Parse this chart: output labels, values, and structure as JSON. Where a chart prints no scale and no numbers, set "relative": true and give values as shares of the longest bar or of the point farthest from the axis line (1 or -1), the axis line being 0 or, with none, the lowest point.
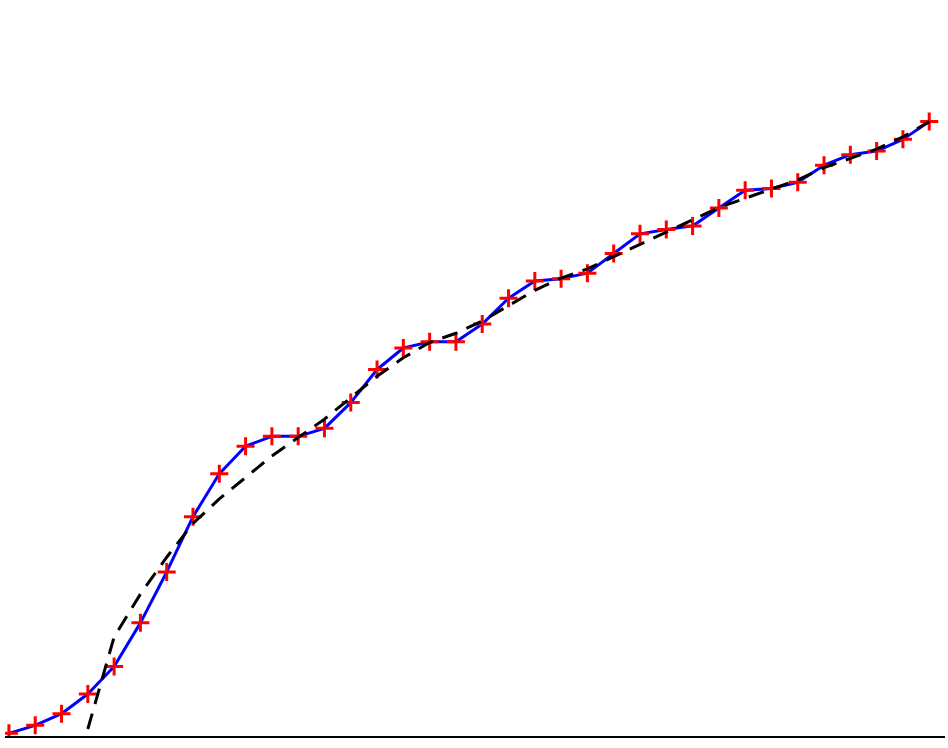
{
  "chart_data": {
    "type": "line",
    "relative": true,
    "grid": false,
    "categories": [
      null,
      null,
      null,
      null,
      null,
      null,
      null,
      null,
      null,
      null,
      null,
      null,
      null,
      null,
      null,
      null,
      null,
      null,
      null,
      null,
      null,
      null,
      null,
      null,
      null,
      null,
      null,
      null,
      null,
      null,
      null,
      null,
      null,
      null,
      null,
      null
    ],
    "series": [
      {
        "color": "#0000ff",
        "marker": "cross",
        "line_style": "solid",
        "values": [
          0.003,
          0.016,
          0.035,
          0.067,
          0.112,
          0.183,
          0.266,
          0.356,
          0.426,
          0.471,
          0.487,
          0.487,
          0.5,
          0.542,
          0.596,
          0.631,
          0.641,
          0.641,
          0.67,
          0.712,
          0.74,
          0.744,
          0.753,
          0.785,
          0.817,
          0.824,
          0.83,
          0.859,
          0.888,
          0.891,
          0.901,
          0.929,
          0.946,
          0.952,
          0.971,
          1.0
        ]
      },
      {
        "color": "#000000",
        "marker": "none",
        "line_style": "dashed",
        "values": [
          null,
          null,
          null,
          0.01,
          0.16,
          0.23,
          0.29,
          0.345,
          0.385,
          0.42,
          0.455,
          0.485,
          0.515,
          0.55,
          0.585,
          0.615,
          0.64,
          0.655,
          0.675,
          0.7,
          0.725,
          0.745,
          0.76,
          0.78,
          0.8,
          0.82,
          0.84,
          0.86,
          0.875,
          0.89,
          0.905,
          0.925,
          0.94,
          0.955,
          0.975,
          1.0
        ]
      }
    ]
  }
}
